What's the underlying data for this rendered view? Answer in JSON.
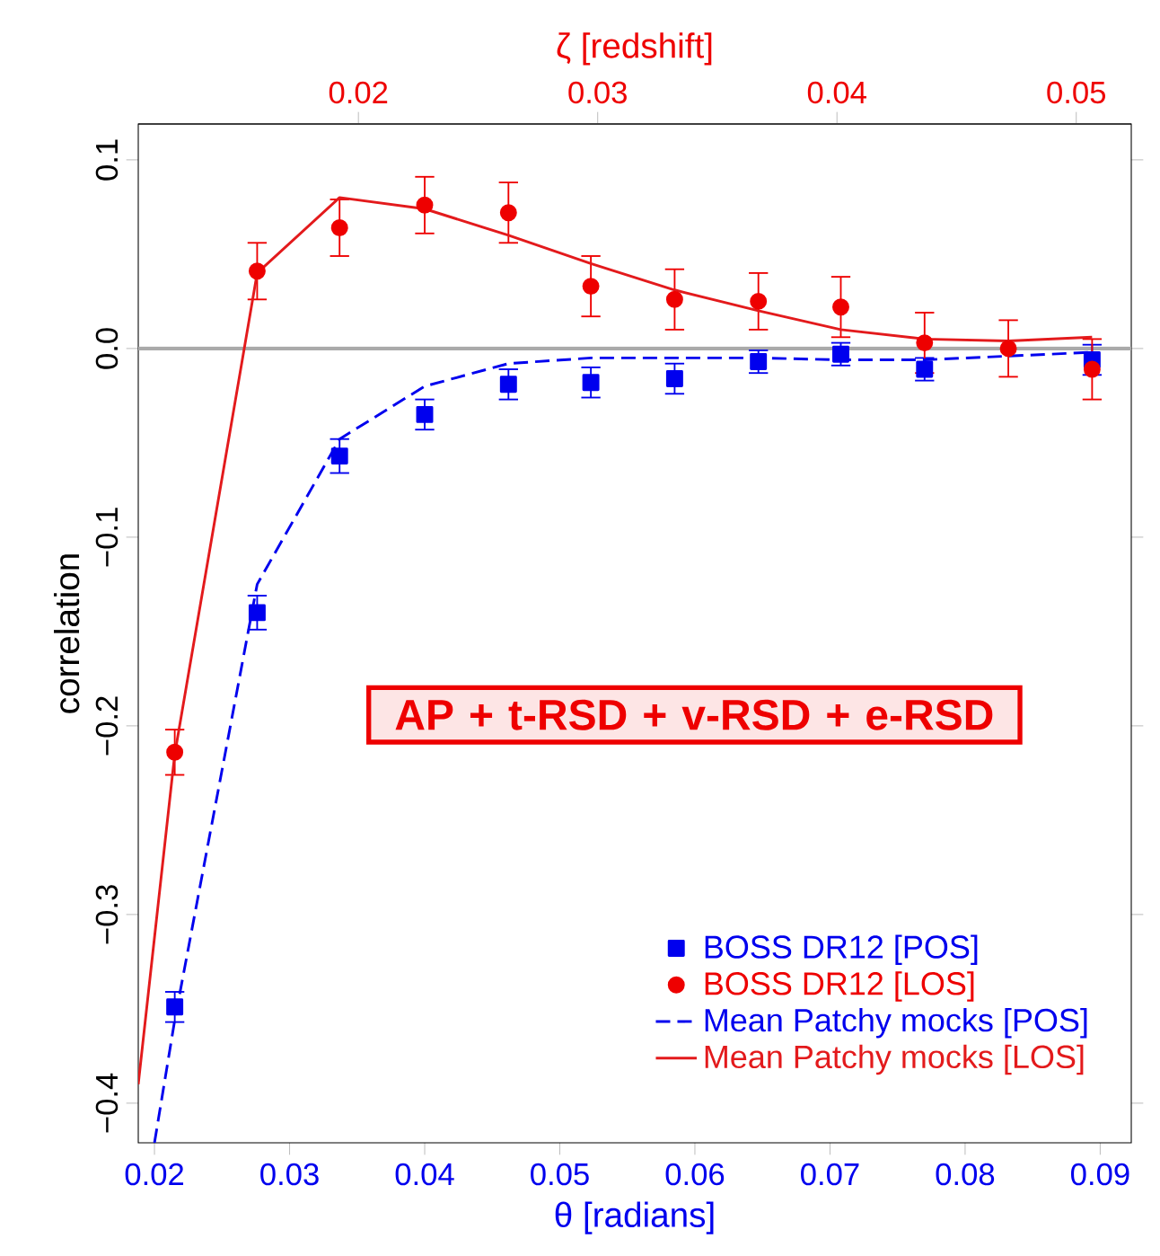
{
  "chart_data": {
    "type": "scatter",
    "xlabel": "θ [radians]",
    "ylabel": "correlation",
    "x2label": "ζ [redshift]",
    "xlim": [
      0.0188,
      0.0923
    ],
    "ylim": [
      -0.421,
      0.119
    ],
    "x2lim": [
      0.0108,
      0.0523
    ],
    "xticks": [
      0.02,
      0.03,
      0.04,
      0.05,
      0.06,
      0.07,
      0.08,
      0.09
    ],
    "x2ticks": [
      0.02,
      0.03,
      0.04,
      0.05
    ],
    "yticks": [
      {
        "value": -0.4,
        "label": "−0.4"
      },
      {
        "value": -0.3,
        "label": "−0.3"
      },
      {
        "value": -0.2,
        "label": "−0.2"
      },
      {
        "value": -0.1,
        "label": "−0.1"
      },
      {
        "value": 0,
        "label": "0.0"
      },
      {
        "value": 0.1,
        "label": "0.1"
      }
    ],
    "ref_lines": [
      {
        "axis": "y",
        "value": 0,
        "color": "#aaaaaa"
      }
    ],
    "annotations": [
      "AP + t-RSD + v-RSD + e-RSD"
    ],
    "legend": "bottom right",
    "series": [
      {
        "name": "BOSS DR12 [POS]",
        "marker": "square",
        "color": "#0000ee",
        "x": [
          0.0215,
          0.0276,
          0.0337,
          0.04,
          0.0462,
          0.0523,
          0.0585,
          0.0647,
          0.0708,
          0.077,
          0.0832,
          0.0894
        ],
        "values": [
          -0.349,
          -0.14,
          -0.057,
          -0.035,
          -0.019,
          -0.018,
          -0.016,
          -0.007,
          -0.003,
          -0.011,
          null,
          -0.006
        ],
        "errors": [
          0.008,
          0.009,
          0.009,
          0.008,
          0.008,
          0.008,
          0.008,
          0.006,
          0.006,
          0.006,
          null,
          0.008
        ]
      },
      {
        "name": "BOSS DR12 [LOS]",
        "marker": "circle",
        "color": "#ee0000",
        "x": [
          0.0215,
          0.0276,
          0.0337,
          0.04,
          0.0462,
          0.0523,
          0.0585,
          0.0647,
          0.0708,
          0.077,
          0.0832,
          0.0894
        ],
        "values": [
          -0.214,
          0.041,
          0.064,
          0.076,
          0.072,
          0.033,
          0.026,
          0.025,
          0.022,
          0.003,
          0.0,
          -0.011
        ],
        "errors": [
          0.012,
          0.015,
          0.015,
          0.015,
          0.016,
          0.016,
          0.016,
          0.015,
          0.016,
          0.016,
          0.015,
          0.016
        ]
      },
      {
        "name": "Mean Patchy mocks [POS]",
        "type": "line",
        "marker": "none",
        "line_style": "dashed",
        "color": "#0000ee",
        "x": [
          0.02,
          0.0215,
          0.0276,
          0.0337,
          0.04,
          0.0462,
          0.0523,
          0.0585,
          0.0647,
          0.0708,
          0.077,
          0.0832,
          0.0894
        ],
        "values": [
          -0.421,
          -0.356,
          -0.125,
          -0.048,
          -0.02,
          -0.008,
          -0.005,
          -0.005,
          -0.005,
          -0.006,
          -0.006,
          -0.004,
          -0.002
        ]
      },
      {
        "name": "Mean Patchy mocks [LOS]",
        "type": "line",
        "marker": "none",
        "line_style": "solid",
        "color": "#e31a1c",
        "x": [
          0.0188,
          0.0215,
          0.0276,
          0.0337,
          0.04,
          0.0462,
          0.0523,
          0.0585,
          0.0647,
          0.0708,
          0.077,
          0.0832,
          0.0894
        ],
        "values": [
          -0.39,
          -0.215,
          0.04,
          0.08,
          0.074,
          0.06,
          0.045,
          0.031,
          0.02,
          0.01,
          0.005,
          0.004,
          0.006
        ]
      }
    ]
  }
}
